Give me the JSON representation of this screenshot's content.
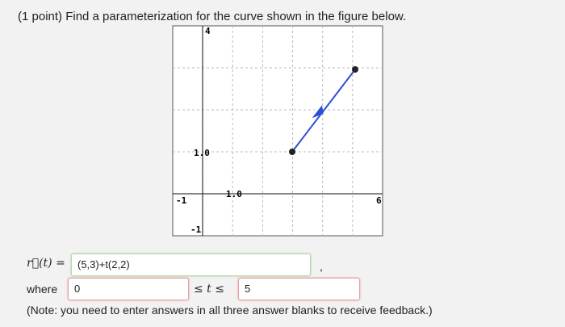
{
  "question": "(1 point) Find a parameterization for the curve shown in the figure below.",
  "figure": {
    "labels": [
      "4",
      "1.0",
      "-1",
      "1.0",
      "6",
      "-1"
    ]
  },
  "answer": {
    "lhs": "r⃗(t) =",
    "vector": "(5,3)+t(2,2)",
    "separator": ",",
    "where": "where",
    "lower": "0",
    "between": "≤ t ≤",
    "upper": "5"
  },
  "note": "(Note: you need to enter answers in all three answer blanks to receive feedback.)"
}
